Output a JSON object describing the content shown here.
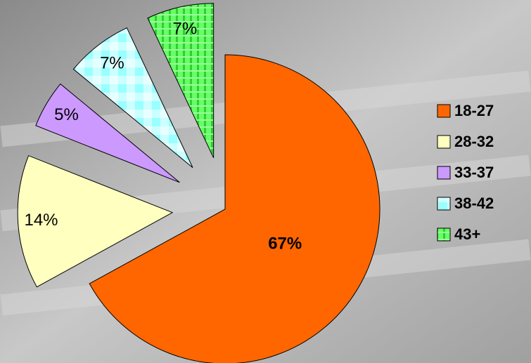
{
  "chart_data": {
    "type": "pie",
    "categories": [
      "18-27",
      "28-32",
      "33-37",
      "38-42",
      "43+"
    ],
    "values": [
      67,
      14,
      5,
      7,
      7
    ],
    "value_labels": [
      "67%",
      "14%",
      "5%",
      "7%",
      "7%"
    ],
    "colors": [
      "#ff6600",
      "#ffffc0",
      "#cc99ff",
      "#ccffff",
      "#66ff66"
    ],
    "legend": "right"
  }
}
